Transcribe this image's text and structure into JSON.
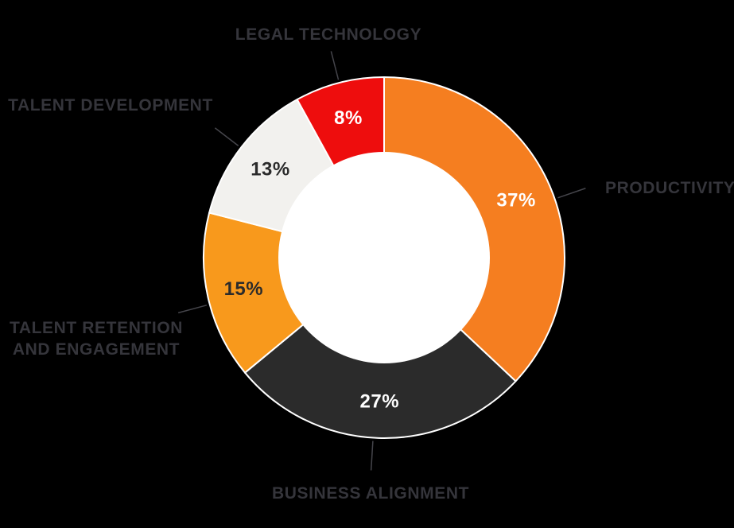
{
  "page": {
    "background_color": "#000000",
    "description": "Donut chart infographic on black background with five category callouts"
  },
  "chart_data": {
    "type": "pie",
    "subtype": "donut",
    "title": "",
    "start_angle": "top",
    "direction": "clockwise",
    "total": 100,
    "slices": [
      {
        "label": "Productivity",
        "callout": "PRODUCTIVITY",
        "value": 37,
        "display": "37%",
        "color": "#F57E20",
        "value_color": "#FFFFFF"
      },
      {
        "label": "Business Alignment",
        "callout": "BUSINESS ALIGNMENT",
        "value": 27,
        "display": "27%",
        "color": "#2B2B2B",
        "value_color": "#FFFFFF"
      },
      {
        "label": "Talent Retention and Engagement",
        "callout": "TALENT RETENTION AND ENGAGEMENT",
        "value": 15,
        "display": "15%",
        "color": "#F8991C",
        "value_color": "#2B2B2B"
      },
      {
        "label": "Talent Development",
        "callout": "TALENT DEVELOPMENT",
        "value": 13,
        "display": "13%",
        "color": "#F2F1EE",
        "value_color": "#2B2B2B"
      },
      {
        "label": "Legal Technology",
        "callout": "LEGAL TECHNOLOGY",
        "value": 8,
        "display": "8%",
        "color": "#EE0D0D",
        "value_color": "#FFFFFF"
      }
    ],
    "hole_color": "#FFFFFF",
    "slice_border_color": "#FFFFFF",
    "background": "#000000",
    "callout_text_color": "#35353B",
    "leader_line_color": "#45454B",
    "legend_position": "outside-callouts",
    "grid": false
  }
}
